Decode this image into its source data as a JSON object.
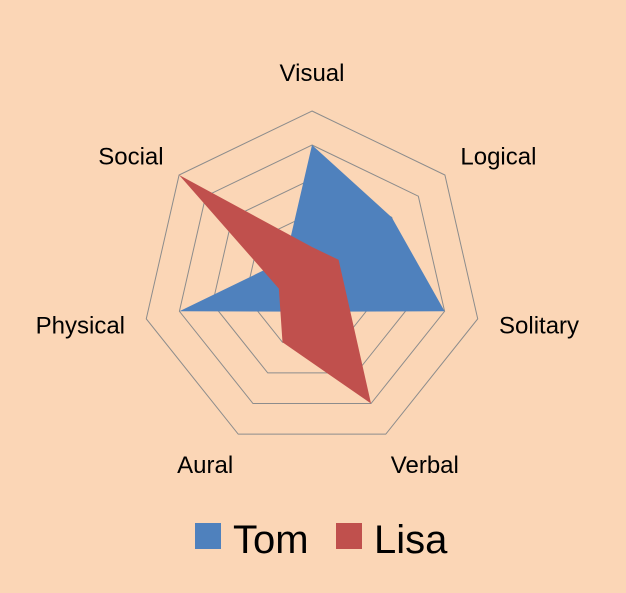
{
  "chart_data": {
    "type": "radar",
    "title": "",
    "categories": [
      "Visual",
      "Logical",
      "Solitary",
      "Verbal",
      "Aural",
      "Physical",
      "Social"
    ],
    "rlim": [
      0,
      5
    ],
    "rings": 5,
    "grid": true,
    "legend_position": "bottom",
    "series": [
      {
        "name": "Tom",
        "color": "#4F81BD",
        "values": [
          4,
          3,
          4,
          1,
          1,
          4,
          1
        ]
      },
      {
        "name": "Lisa",
        "color": "#C0504D",
        "values": [
          1,
          1,
          1,
          4,
          2,
          1,
          5
        ]
      }
    ]
  },
  "style": {
    "background": "#FBD6B6",
    "grid_color": "#8C8C8C",
    "text_color": "#000000"
  }
}
